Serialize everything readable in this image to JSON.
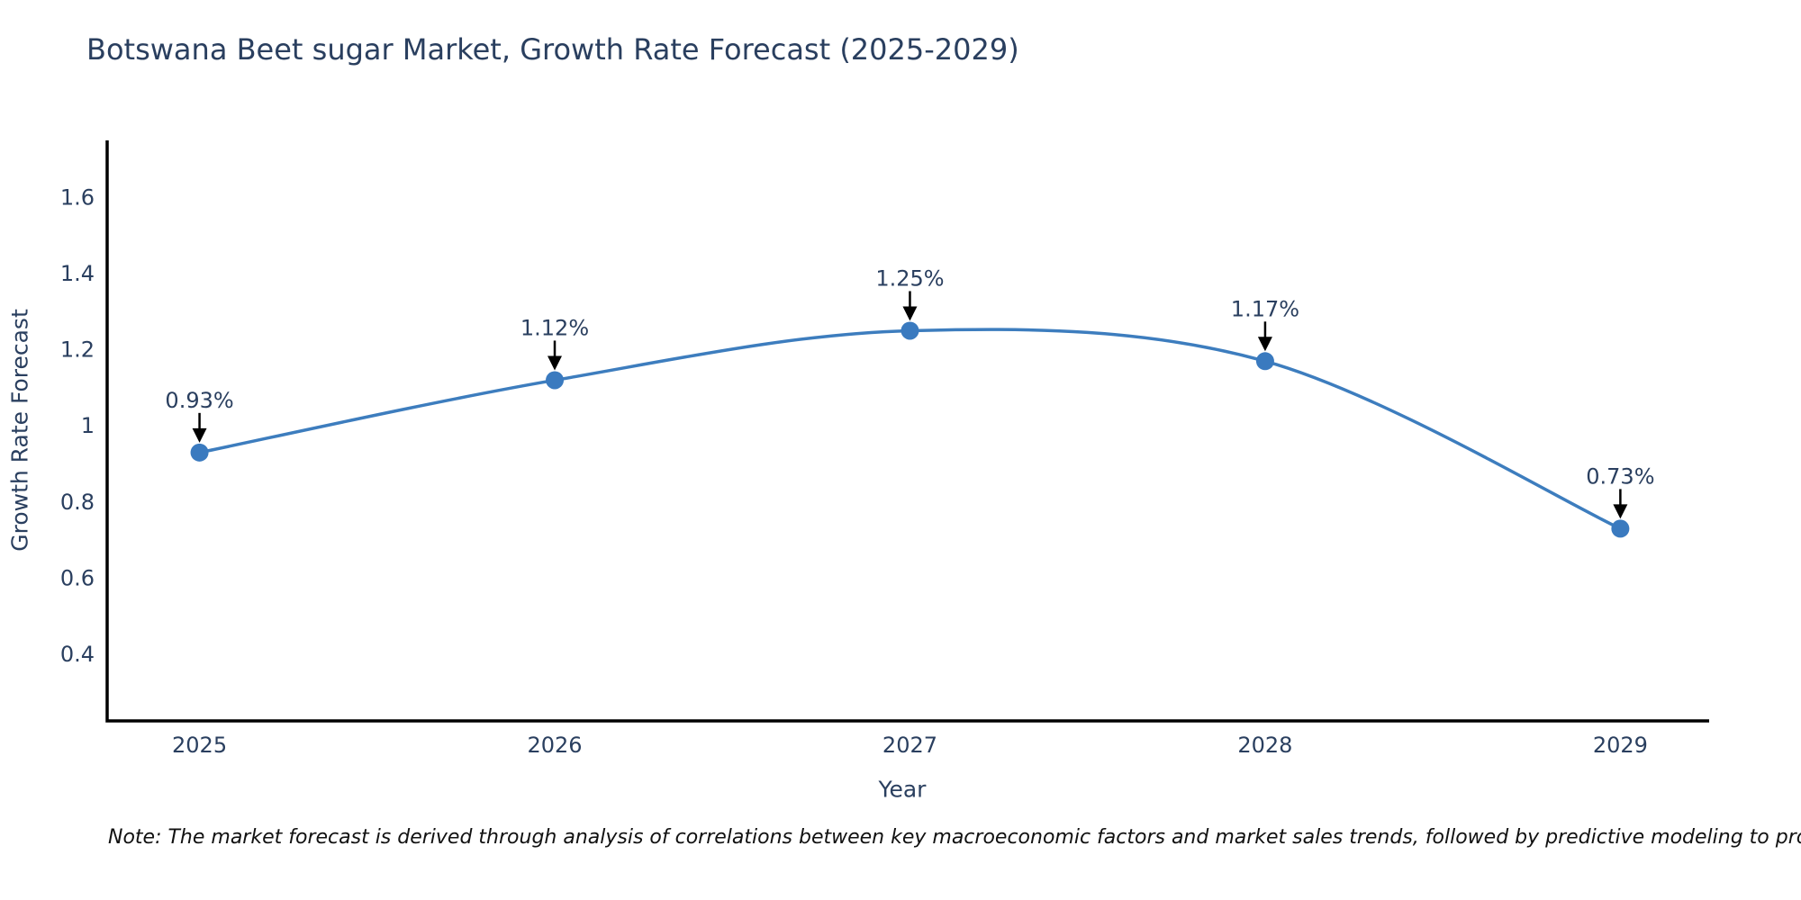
{
  "title": "Botswana Beet sugar Market, Growth Rate Forecast (2025-2029)",
  "note": "Note: The market forecast is derived through analysis of correlations between key macroeconomic factors and market sales trends, followed by predictive modeling to project future sales",
  "chart_data": {
    "type": "line",
    "curve": "spline",
    "x": [
      2025,
      2026,
      2027,
      2028,
      2029
    ],
    "values": [
      0.93,
      1.12,
      1.25,
      1.17,
      0.73
    ],
    "point_labels": [
      "0.93%",
      "1.12%",
      "1.25%",
      "1.17%",
      "0.73%"
    ],
    "title": "Botswana Beet sugar Market, Growth Rate Forecast (2025-2029)",
    "xlabel": "Year",
    "ylabel": "Growth Rate Forecast",
    "xtick_labels": [
      "2025",
      "2026",
      "2027",
      "2028",
      "2029"
    ],
    "yticks": [
      0.4,
      0.6,
      0.8,
      1,
      1.2,
      1.4,
      1.6
    ],
    "ytick_labels": [
      "0.4",
      "0.6",
      "0.8",
      "1",
      "1.2",
      "1.4",
      "1.6"
    ],
    "xlim": [
      2024.74,
      2029.25
    ],
    "ylim": [
      0.225,
      1.75
    ],
    "grid": false,
    "legend": "none",
    "line_color": "#3d7dbe",
    "marker_color": "#3a7abf",
    "axis_color": "#000000",
    "annotation_arrow_color": "#000000",
    "text_color": "#2a3f5f"
  }
}
